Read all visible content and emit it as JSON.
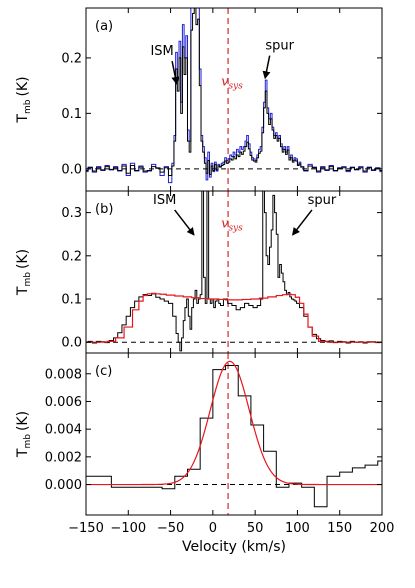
{
  "chart_data": [
    {
      "id": "a",
      "type": "line",
      "panel_label": "(a)",
      "ylabel_main": "T",
      "ylabel_sub": "mb",
      "ylabel_unit": "(K)",
      "xlim": [
        -150,
        200
      ],
      "ylim": [
        -0.04,
        0.29
      ],
      "yticks": [
        0.0,
        0.1,
        0.2
      ],
      "ytick_labels": [
        "0.0",
        "0.1",
        "0.2"
      ],
      "baseline": 0.0,
      "vsys_x": 18,
      "vsys_label": "v",
      "vsys_sub": "sys",
      "annotations": [
        {
          "text": "ISM",
          "text_x": -60,
          "text_y": 0.205,
          "arrow_to_x": -43,
          "arrow_to_y": 0.155
        },
        {
          "text": "spur",
          "text_x": 79,
          "text_y": 0.215,
          "arrow_to_x": 62,
          "arrow_to_y": 0.165
        }
      ],
      "series": [
        {
          "color": "#1f1fd6",
          "x": [
            -150,
            -145,
            -140,
            -135,
            -130,
            -125,
            -120,
            -115,
            -110,
            -105,
            -100,
            -95,
            -90,
            -85,
            -80,
            -75,
            -70,
            -65,
            -60,
            -55,
            -50,
            -47,
            -45,
            -43,
            -41,
            -39,
            -37,
            -35,
            -33,
            -31,
            -29,
            -27,
            -25,
            -23,
            -21,
            -19,
            -17,
            -15,
            -13,
            -11,
            -9,
            -7,
            -5,
            -3,
            -1,
            1,
            3,
            5,
            7,
            9,
            11,
            13,
            15,
            17,
            19,
            21,
            23,
            25,
            27,
            29,
            31,
            33,
            35,
            37,
            39,
            41,
            43,
            45,
            47,
            49,
            51,
            53,
            55,
            57,
            59,
            61,
            63,
            65,
            67,
            69,
            71,
            73,
            75,
            77,
            79,
            81,
            83,
            85,
            87,
            89,
            91,
            93,
            95,
            97,
            99,
            101,
            103,
            105,
            110,
            115,
            120,
            125,
            130,
            135,
            140,
            145,
            150,
            155,
            160,
            165,
            170,
            175,
            180,
            185,
            190,
            195,
            200
          ],
          "y": [
            -0.005,
            0.003,
            -0.006,
            0.004,
            -0.003,
            0.006,
            -0.002,
            0.004,
            -0.004,
            0.008,
            -0.012,
            0.01,
            -0.004,
            0.005,
            -0.006,
            -0.004,
            0.008,
            0.002,
            -0.012,
            0.004,
            -0.025,
            0.01,
            0.06,
            0.21,
            0.16,
            0.23,
            0.12,
            0.26,
            0.2,
            0.24,
            0.07,
            0.05,
            0.29,
            0.29,
            0.29,
            0.29,
            0.29,
            0.18,
            0.06,
            0.04,
            0.02,
            -0.02,
            0.03,
            -0.015,
            0.01,
            -0.005,
            0.012,
            -0.004,
            0.008,
            0.004,
            0.01,
            0.012,
            0.02,
            0.015,
            0.018,
            0.025,
            0.022,
            0.03,
            0.025,
            0.035,
            0.03,
            0.04,
            0.035,
            0.04,
            0.05,
            0.06,
            0.045,
            0.03,
            0.02,
            0.018,
            0.015,
            0.025,
            0.035,
            0.04,
            0.075,
            0.12,
            0.16,
            0.11,
            0.09,
            0.1,
            0.075,
            0.06,
            0.065,
            0.055,
            0.06,
            0.045,
            0.035,
            0.04,
            0.03,
            0.04,
            0.02,
            0.025,
            0.015,
            0.02,
            0.018,
            0.008,
            0.012,
            0.004,
            -0.004,
            0.008,
            0.003,
            -0.006,
            0.004,
            -0.003,
            0.006,
            -0.004,
            0.002,
            0.004,
            -0.005,
            0.003,
            -0.002,
            0.004,
            -0.006,
            0.003,
            -0.003,
            0.002,
            -0.005
          ]
        },
        {
          "color": "#000000",
          "x": [
            -150,
            -145,
            -140,
            -135,
            -130,
            -125,
            -120,
            -115,
            -110,
            -105,
            -100,
            -95,
            -90,
            -85,
            -80,
            -75,
            -70,
            -65,
            -60,
            -55,
            -50,
            -47,
            -45,
            -43,
            -41,
            -39,
            -37,
            -35,
            -33,
            -31,
            -29,
            -27,
            -25,
            -23,
            -21,
            -19,
            -17,
            -15,
            -13,
            -11,
            -9,
            -7,
            -5,
            -3,
            -1,
            1,
            3,
            5,
            7,
            9,
            11,
            13,
            15,
            17,
            19,
            21,
            23,
            25,
            27,
            29,
            31,
            33,
            35,
            37,
            39,
            41,
            43,
            45,
            47,
            49,
            51,
            53,
            55,
            57,
            59,
            61,
            63,
            65,
            67,
            69,
            71,
            73,
            75,
            77,
            79,
            81,
            83,
            85,
            87,
            89,
            91,
            93,
            95,
            97,
            99,
            101,
            103,
            105,
            110,
            115,
            120,
            125,
            130,
            135,
            140,
            145,
            150,
            155,
            160,
            165,
            170,
            175,
            180,
            185,
            190,
            195,
            200
          ],
          "y": [
            -0.003,
            0.002,
            -0.004,
            0.002,
            -0.002,
            0.004,
            -0.001,
            0.002,
            -0.003,
            0.005,
            -0.008,
            0.006,
            -0.003,
            0.003,
            -0.004,
            -0.003,
            0.004,
            0.001,
            -0.006,
            0.002,
            -0.012,
            0.005,
            0.05,
            0.18,
            0.14,
            0.2,
            0.1,
            0.22,
            0.17,
            0.2,
            0.05,
            0.03,
            0.25,
            0.28,
            0.29,
            0.26,
            0.27,
            0.15,
            0.05,
            0.03,
            0.01,
            -0.008,
            0.015,
            -0.01,
            0.005,
            -0.003,
            0.008,
            -0.002,
            0.005,
            0.003,
            0.006,
            0.008,
            0.014,
            0.01,
            0.012,
            0.018,
            0.016,
            0.022,
            0.018,
            0.025,
            0.022,
            0.03,
            0.026,
            0.032,
            0.04,
            0.048,
            0.036,
            0.024,
            0.016,
            0.014,
            0.012,
            0.02,
            0.028,
            0.032,
            0.065,
            0.11,
            0.14,
            0.1,
            0.08,
            0.09,
            0.07,
            0.055,
            0.06,
            0.05,
            0.055,
            0.04,
            0.03,
            0.035,
            0.026,
            0.034,
            0.016,
            0.02,
            0.012,
            0.016,
            0.014,
            0.006,
            0.009,
            0.003,
            -0.003,
            0.005,
            0.002,
            -0.004,
            0.002,
            -0.002,
            0.004,
            -0.003,
            0.001,
            0.002,
            -0.003,
            0.002,
            -0.001,
            0.002,
            -0.004,
            0.002,
            -0.002,
            0.001,
            -0.003
          ]
        }
      ]
    },
    {
      "id": "b",
      "type": "line",
      "panel_label": "(b)",
      "ylabel_main": "T",
      "ylabel_sub": "mb",
      "ylabel_unit": "(K)",
      "xlim": [
        -150,
        200
      ],
      "ylim": [
        -0.025,
        0.35
      ],
      "yticks": [
        0.0,
        0.1,
        0.2,
        0.3
      ],
      "ytick_labels": [
        "0.0",
        "0.1",
        "0.2",
        "0.3"
      ],
      "baseline": 0.0,
      "vsys_x": 18,
      "vsys_label": "v",
      "vsys_sub": "sys",
      "annotations": [
        {
          "text": "ISM",
          "text_x": -57,
          "text_y": 0.32,
          "arrow_to_x": -23,
          "arrow_to_y": 0.25
        },
        {
          "text": "spur",
          "text_x": 129,
          "text_y": 0.32,
          "arrow_to_x": 95,
          "arrow_to_y": 0.25
        }
      ],
      "series": [
        {
          "color": "#000000",
          "x": [
            -150,
            -145,
            -140,
            -135,
            -130,
            -125,
            -120,
            -115,
            -110,
            -105,
            -100,
            -95,
            -90,
            -85,
            -80,
            -75,
            -70,
            -65,
            -60,
            -55,
            -50,
            -45,
            -42,
            -40,
            -38,
            -36,
            -34,
            -32,
            -30,
            -28,
            -26,
            -24,
            -22,
            -20,
            -18,
            -16,
            -14,
            -12,
            -10,
            -8,
            -6,
            -4,
            -2,
            0,
            2,
            4,
            6,
            8,
            10,
            15,
            20,
            25,
            30,
            35,
            40,
            45,
            50,
            55,
            58,
            60,
            62,
            64,
            66,
            68,
            70,
            72,
            74,
            76,
            78,
            80,
            82,
            84,
            86,
            88,
            90,
            92,
            94,
            96,
            98,
            100,
            105,
            110,
            115,
            120,
            125,
            130,
            135,
            140,
            145,
            150,
            155,
            160,
            165,
            170,
            175,
            180,
            185,
            190,
            195,
            200
          ],
          "y": [
            0.0,
            0.002,
            -0.002,
            0.002,
            0.001,
            -0.001,
            0.004,
            0.01,
            0.022,
            0.04,
            0.06,
            0.08,
            0.095,
            0.105,
            0.11,
            0.108,
            0.112,
            0.104,
            0.1,
            0.095,
            0.09,
            0.06,
            0.02,
            0.0,
            -0.02,
            0.01,
            0.05,
            0.08,
            0.1,
            0.06,
            0.03,
            0.08,
            0.1,
            0.12,
            0.09,
            0.1,
            0.11,
            0.35,
            0.15,
            0.09,
            0.35,
            0.1,
            0.09,
            0.1,
            0.08,
            0.095,
            0.1,
            0.09,
            0.085,
            0.1,
            0.09,
            0.085,
            0.075,
            0.08,
            0.09,
            0.085,
            0.08,
            0.085,
            0.1,
            0.35,
            0.3,
            0.2,
            0.18,
            0.22,
            0.26,
            0.34,
            0.3,
            0.25,
            0.15,
            0.18,
            0.16,
            0.14,
            0.12,
            0.11,
            0.115,
            0.105,
            0.1,
            0.098,
            0.095,
            0.09,
            0.08,
            0.06,
            0.035,
            0.018,
            0.008,
            0.004,
            0.002,
            0.003,
            -0.001,
            0.002,
            0.001,
            -0.002,
            0.002,
            0.0,
            0.001,
            -0.002,
            0.001,
            0.001,
            -0.001,
            0.0
          ]
        },
        {
          "color": "#e8161b",
          "x": [
            -150,
            -140,
            -130,
            -120,
            -110,
            -100,
            -90,
            -85,
            -80,
            -75,
            -70,
            -65,
            -60,
            -50,
            -40,
            -30,
            -20,
            -10,
            0,
            10,
            20,
            30,
            40,
            50,
            60,
            70,
            80,
            85,
            90,
            95,
            100,
            105,
            110,
            115,
            120,
            130,
            140,
            150,
            160,
            170,
            180,
            190,
            200
          ],
          "y": [
            0.0,
            0.0,
            0.0,
            0.002,
            0.01,
            0.035,
            0.075,
            0.095,
            0.108,
            0.112,
            0.113,
            0.112,
            0.111,
            0.109,
            0.107,
            0.105,
            0.103,
            0.101,
            0.1,
            0.099,
            0.098,
            0.098,
            0.099,
            0.1,
            0.102,
            0.105,
            0.108,
            0.11,
            0.111,
            0.11,
            0.104,
            0.09,
            0.065,
            0.035,
            0.014,
            0.002,
            0.0,
            0.0,
            0.0,
            0.0,
            0.0,
            0.0,
            0.0
          ]
        }
      ]
    },
    {
      "id": "c",
      "type": "line",
      "panel_label": "(c)",
      "ylabel_main": "T",
      "ylabel_sub": "mb",
      "ylabel_unit": "(K)",
      "xlim": [
        -150,
        200
      ],
      "ylim": [
        -0.0022,
        0.0095
      ],
      "yticks": [
        0.0,
        0.002,
        0.004,
        0.006,
        0.008
      ],
      "ytick_labels": [
        "0.000",
        "0.002",
        "0.004",
        "0.006",
        "0.008"
      ],
      "xticks": [
        -150,
        -100,
        -50,
        0,
        50,
        100,
        150,
        200
      ],
      "xtick_labels": [
        "−150",
        "−100",
        "−50",
        "0",
        "50",
        "100",
        "150",
        "200"
      ],
      "xlabel": "Velocity (km/s)",
      "baseline": 0.0,
      "vsys_x": 18,
      "series": [
        {
          "color": "#000000",
          "step": true,
          "x": [
            -150,
            -135,
            -120,
            -105,
            -90,
            -75,
            -60,
            -45,
            -30,
            -15,
            0,
            15,
            30,
            45,
            60,
            75,
            90,
            105,
            120,
            135,
            150,
            165,
            180,
            195,
            200
          ],
          "y": [
            0.0006,
            0.0006,
            -0.0002,
            -0.0002,
            -0.0002,
            -0.0002,
            -0.0003,
            0.0006,
            0.0011,
            0.0048,
            0.0083,
            0.0086,
            0.0064,
            0.0043,
            0.0024,
            -0.0002,
            0.0001,
            -0.0002,
            -0.0016,
            0.0006,
            0.0009,
            0.0012,
            0.0014,
            0.0017,
            0.0017
          ]
        },
        {
          "color": "#e8161b",
          "gaussian": {
            "amplitude": 0.0089,
            "center": 20,
            "sigma": 23
          },
          "x": [],
          "y": []
        }
      ]
    }
  ]
}
